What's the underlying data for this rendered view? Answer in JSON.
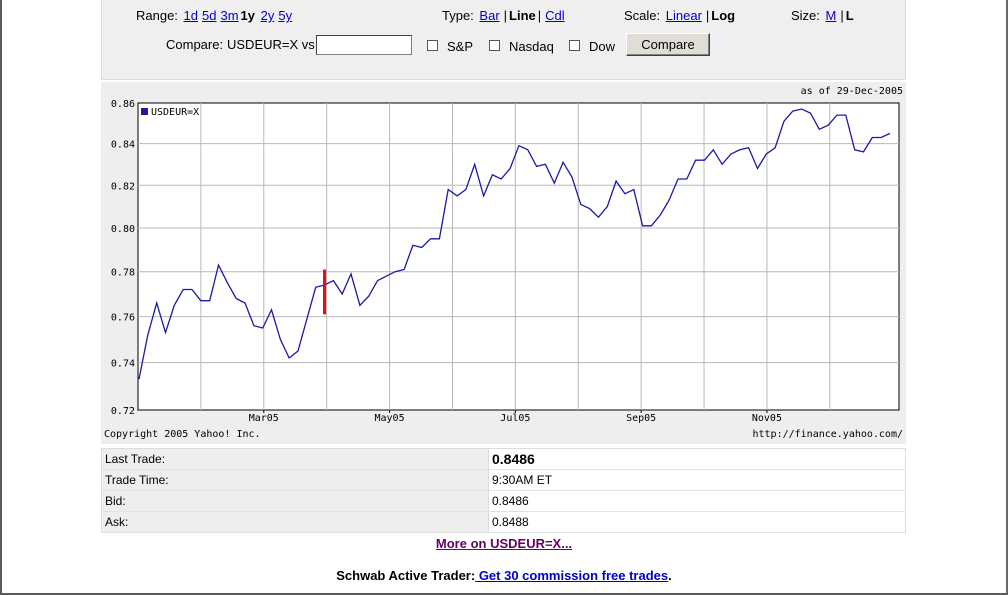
{
  "controls": {
    "range_label": "Range:",
    "ranges": [
      "1d",
      "5d",
      "1y",
      "2y",
      "5y"
    ],
    "range_selected": "1y",
    "range_extra": "3m",
    "type_label": "Type:",
    "type_bar": "Bar",
    "type_line": "Line",
    "type_cdl": "Cdl",
    "scale_label": "Scale:",
    "scale_linear": "Linear",
    "scale_log": "Log",
    "size_label": "Size:",
    "size_m": "M",
    "size_l": "L",
    "compare_label": "Compare:",
    "compare_symbol": "USDEUR=X vs",
    "compare_input_value": "",
    "sp": "S&P",
    "nasdaq": "Nasdaq",
    "dow": "Dow",
    "compare_button": "Compare"
  },
  "chart_data": {
    "type": "line",
    "as_of": "as of 29-Dec-2005",
    "legend": "USDEUR=X",
    "copyright": "Copyright 2005 Yahoo! Inc.",
    "source_url": "http://finance.yahoo.com/",
    "y_ticks": [
      "0.86",
      "0.84",
      "0.82",
      "0.80",
      "0.78",
      "0.76",
      "0.74",
      "0.72"
    ],
    "x_ticks": [
      "Mar05",
      "May05",
      "Jul05",
      "Sep05",
      "Nov05"
    ],
    "ylim": [
      0.72,
      0.86
    ],
    "yscale": "log",
    "grid": true,
    "series_color": "#1a1aa6",
    "marker_color": "#dd1111",
    "series": [
      {
        "name": "USDEUR=X",
        "values": [
          0.733,
          0.752,
          0.766,
          0.753,
          0.765,
          0.772,
          0.772,
          0.767,
          0.767,
          0.783,
          0.775,
          0.768,
          0.766,
          0.756,
          0.755,
          0.763,
          0.75,
          0.742,
          0.745,
          0.759,
          0.773,
          0.774,
          0.776,
          0.77,
          0.779,
          0.765,
          0.769,
          0.776,
          0.778,
          0.78,
          0.781,
          0.792,
          0.791,
          0.795,
          0.795,
          0.818,
          0.815,
          0.818,
          0.83,
          0.815,
          0.825,
          0.823,
          0.828,
          0.839,
          0.837,
          0.829,
          0.83,
          0.821,
          0.831,
          0.824,
          0.811,
          0.809,
          0.805,
          0.81,
          0.822,
          0.816,
          0.818,
          0.801,
          0.801,
          0.806,
          0.813,
          0.823,
          0.823,
          0.832,
          0.832,
          0.837,
          0.83,
          0.835,
          0.837,
          0.838,
          0.828,
          0.835,
          0.838,
          0.851,
          0.856,
          0.857,
          0.855,
          0.847,
          0.849,
          0.854,
          0.854,
          0.837,
          0.836,
          0.843,
          0.843,
          0.845
        ]
      }
    ],
    "marker": {
      "high": 0.781,
      "low": 0.761
    }
  },
  "quote": {
    "rows": [
      {
        "label": "Last Trade:",
        "value": "0.8486"
      },
      {
        "label": "Trade Time:",
        "value": "9:30AM ET"
      },
      {
        "label": "Bid:",
        "value": "0.8486"
      },
      {
        "label": "Ask:",
        "value": "0.8488"
      }
    ]
  },
  "more_link": "More on USDEUR=X...",
  "promo": {
    "prefix": "Schwab Active Trader:",
    "link": " Get 30 commission free trades",
    "suffix": "."
  }
}
